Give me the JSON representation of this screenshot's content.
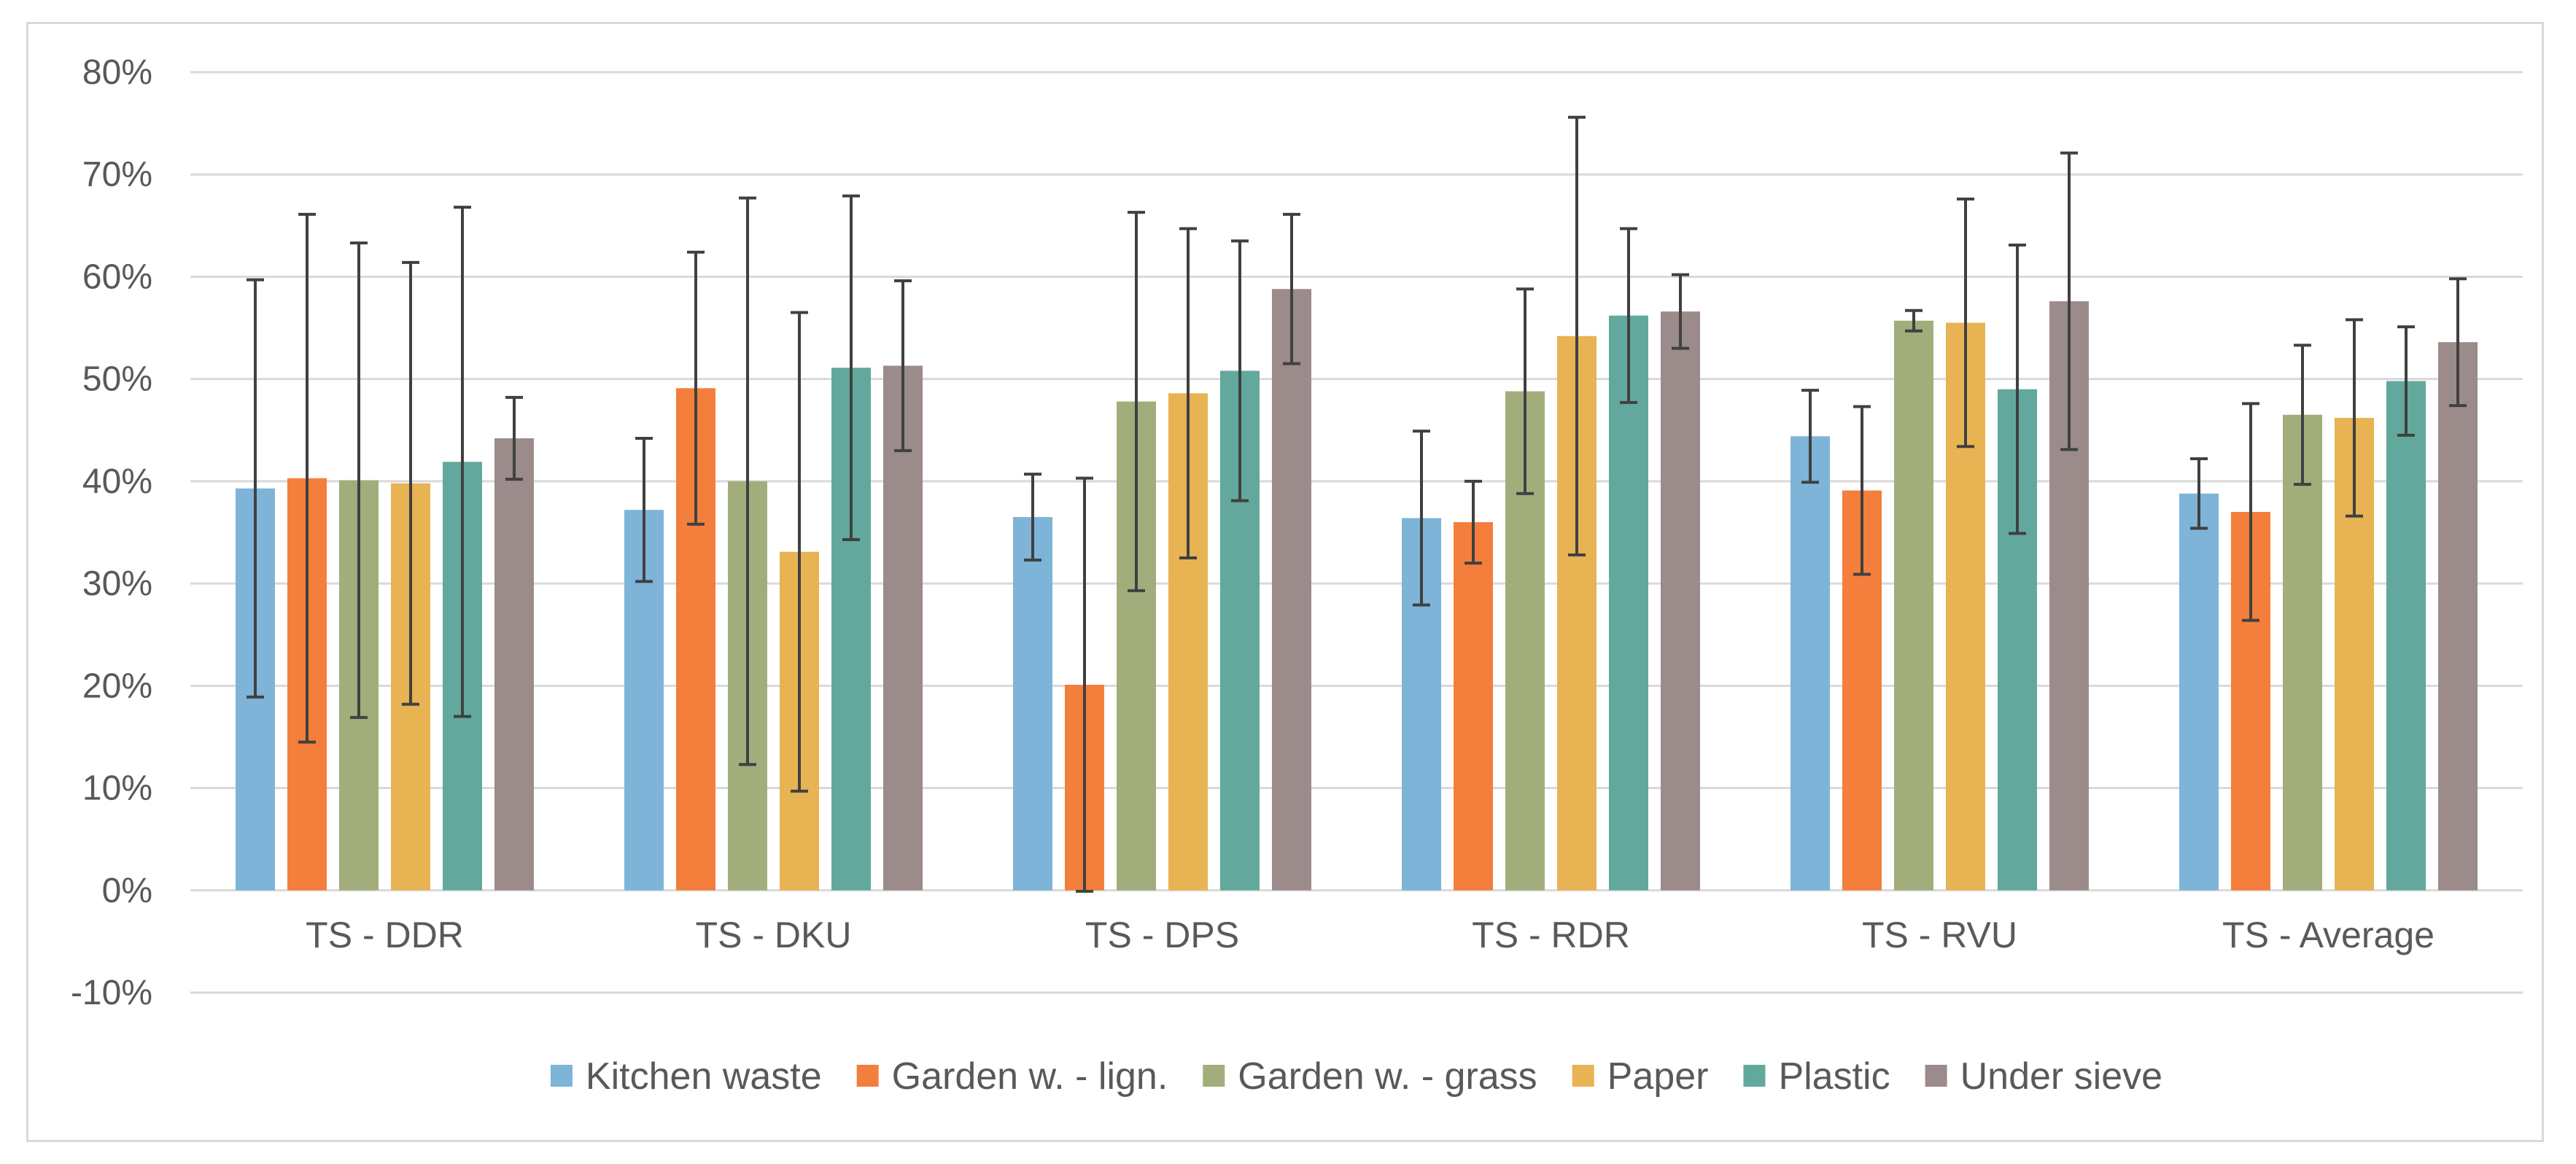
{
  "chart_data": {
    "type": "bar",
    "title": "",
    "xlabel": "",
    "ylabel": "",
    "ylim": [
      -0.1,
      0.8
    ],
    "y_ticks": [
      -0.1,
      0,
      0.1,
      0.2,
      0.3,
      0.4,
      0.5,
      0.6,
      0.7,
      0.8
    ],
    "y_tick_labels": [
      "-10%",
      "0%",
      "10%",
      "20%",
      "30%",
      "40%",
      "50%",
      "60%",
      "70%",
      "80%"
    ],
    "grid": true,
    "legend_position": "bottom",
    "categories": [
      "TS - DDR",
      "TS - DKU",
      "TS - DPS",
      "TS - RDR",
      "TS - RVU",
      "TS -  Average"
    ],
    "series": [
      {
        "name": "Kitchen waste",
        "color": "#7eb4d8",
        "values": [
          0.393,
          0.372,
          0.365,
          0.364,
          0.444,
          0.388
        ],
        "errors": [
          0.204,
          0.07,
          0.042,
          0.085,
          0.045,
          0.034
        ]
      },
      {
        "name": "Garden w. - lign.",
        "color": "#f47e3c",
        "values": [
          0.403,
          0.491,
          0.201,
          0.36,
          0.391,
          0.37
        ],
        "errors": [
          0.258,
          0.133,
          0.202,
          0.04,
          0.082,
          0.106
        ]
      },
      {
        "name": "Garden w. - grass",
        "color": "#a2ad7c",
        "values": [
          0.401,
          0.4,
          0.478,
          0.488,
          0.557,
          0.465
        ],
        "errors": [
          0.232,
          0.277,
          0.185,
          0.1,
          0.01,
          0.068
        ]
      },
      {
        "name": "Paper",
        "color": "#e8b353",
        "values": [
          0.398,
          0.331,
          0.486,
          0.542,
          0.555,
          0.462
        ],
        "errors": [
          0.216,
          0.234,
          0.161,
          0.214,
          0.121,
          0.096
        ]
      },
      {
        "name": "Plastic",
        "color": "#62a89d",
        "values": [
          0.419,
          0.511,
          0.508,
          0.562,
          0.49,
          0.498
        ],
        "errors": [
          0.249,
          0.168,
          0.127,
          0.085,
          0.141,
          0.053
        ]
      },
      {
        "name": "Under sieve",
        "color": "#9b8b8a",
        "values": [
          0.442,
          0.513,
          0.588,
          0.566,
          0.576,
          0.536
        ],
        "errors": [
          0.04,
          0.083,
          0.073,
          0.036,
          0.145,
          0.062
        ]
      }
    ]
  }
}
